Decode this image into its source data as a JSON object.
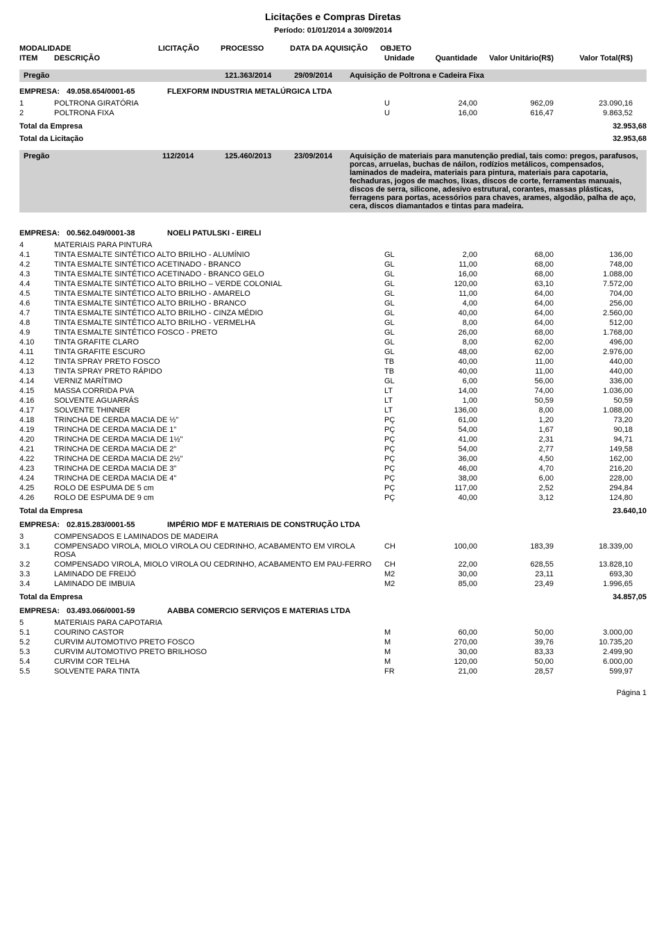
{
  "title": "Licitações e Compras Diretas",
  "period": "Período: 01/01/2014  a 30/09/2014",
  "header": {
    "modalidade": "MODALIDADE",
    "licitacao": "LICITAÇÃO",
    "processo": "PROCESSO",
    "data_aq": "DATA DA AQUISIÇÃO",
    "objeto": "OBJETO",
    "item": "ITEM",
    "descricao": "DESCRIÇÃO",
    "unidade": "Unidade",
    "quantidade": "Quantidade",
    "valor_unit": "Valor Unitário(R$)",
    "valor_total": "Valor Total(R$)"
  },
  "labels": {
    "empresa": "EMPRESA:",
    "total_empresa": "Total da Empresa",
    "total_licitacao": "Total da Licitação",
    "pagina": "Página 1"
  },
  "section1": {
    "modalidade": "Pregão",
    "licitacao": "",
    "processo": "121.363/2014",
    "data": "29/09/2014",
    "objeto": "Aquisição de Poltrona e Cadeira Fixa"
  },
  "empresa1": {
    "cnpj": "49.058.654/0001-65",
    "nome": "FLEXFORM INDUSTRIA METALÚRGICA LTDA",
    "items": [
      {
        "item": "1",
        "desc": "POLTRONA GIRATÓRIA",
        "un": "U",
        "qtd": "24,00",
        "vu": "962,09",
        "vt": "23.090,16"
      },
      {
        "item": "2",
        "desc": "POLTRONA FIXA",
        "un": "U",
        "qtd": "16,00",
        "vu": "616,47",
        "vt": "9.863,52"
      }
    ],
    "total": "32.953,68"
  },
  "total_lic1": "32.953,68",
  "section2": {
    "modalidade": "Pregão",
    "licitacao": "112/2014",
    "processo": "125.460/2013",
    "data": "23/09/2014",
    "objeto": "Aquisição de materiais para manutenção predial, tais como: pregos, parafusos, porcas, arruelas, buchas de náilon, rodízios metálicos, compensados, laminados de madeira, materiais para pintura, materiais para capotaria, fechaduras, jogos de machos, lixas, discos de corte, ferramentas manuais, discos de serra, silicone, adesivo estrutural, corantes, massas plásticas, ferragens para portas, acessórios para chaves, arames, algodão, palha de aço, cera, discos diamantados e tintas para madeira."
  },
  "empresa2": {
    "cnpj": "00.562.049/0001-38",
    "nome": "NOELI PATULSKI - EIRELI",
    "group_item": "4",
    "group_desc": "MATERIAIS PARA PINTURA",
    "items": [
      {
        "item": "4.1",
        "desc": "TINTA ESMALTE SINTÉTICO ALTO BRILHO - ALUMÍNIO",
        "un": "GL",
        "qtd": "2,00",
        "vu": "68,00",
        "vt": "136,00"
      },
      {
        "item": "4.2",
        "desc": "TINTA ESMALTE SINTÉTICO ACETINADO - BRANCO",
        "un": "GL",
        "qtd": "11,00",
        "vu": "68,00",
        "vt": "748,00"
      },
      {
        "item": "4.3",
        "desc": "TINTA ESMALTE SINTÉTICO ACETINADO - BRANCO GELO",
        "un": "GL",
        "qtd": "16,00",
        "vu": "68,00",
        "vt": "1.088,00"
      },
      {
        "item": "4.4",
        "desc": "TINTA ESMALTE SINTÉTICO ALTO BRILHO – VERDE COLONIAL",
        "un": "GL",
        "qtd": "120,00",
        "vu": "63,10",
        "vt": "7.572,00"
      },
      {
        "item": "4.5",
        "desc": "TINTA ESMALTE SINTÉTICO ALTO BRILHO - AMARELO",
        "un": "GL",
        "qtd": "11,00",
        "vu": "64,00",
        "vt": "704,00"
      },
      {
        "item": "4.6",
        "desc": "TINTA ESMALTE SINTÉTICO ALTO BRILHO - BRANCO",
        "un": "GL",
        "qtd": "4,00",
        "vu": "64,00",
        "vt": "256,00"
      },
      {
        "item": "4.7",
        "desc": "TINTA ESMALTE SINTÉTICO ALTO BRILHO - CINZA MÉDIO",
        "un": "GL",
        "qtd": "40,00",
        "vu": "64,00",
        "vt": "2.560,00"
      },
      {
        "item": "4.8",
        "desc": "TINTA ESMALTE SINTÉTICO ALTO BRILHO - VERMELHA",
        "un": "GL",
        "qtd": "8,00",
        "vu": "64,00",
        "vt": "512,00"
      },
      {
        "item": "4.9",
        "desc": "TINTA ESMALTE SINTÉTICO FOSCO - PRETO",
        "un": "GL",
        "qtd": "26,00",
        "vu": "68,00",
        "vt": "1.768,00"
      },
      {
        "item": "4.10",
        "desc": "TINTA GRAFITE CLARO",
        "un": "GL",
        "qtd": "8,00",
        "vu": "62,00",
        "vt": "496,00"
      },
      {
        "item": "4.11",
        "desc": "TINTA GRAFITE ESCURO",
        "un": "GL",
        "qtd": "48,00",
        "vu": "62,00",
        "vt": "2.976,00"
      },
      {
        "item": "4.12",
        "desc": "TINTA SPRAY PRETO FOSCO",
        "un": "TB",
        "qtd": "40,00",
        "vu": "11,00",
        "vt": "440,00"
      },
      {
        "item": "4.13",
        "desc": "TINTA SPRAY PRETO RÁPIDO",
        "un": "TB",
        "qtd": "40,00",
        "vu": "11,00",
        "vt": "440,00"
      },
      {
        "item": "4.14",
        "desc": "VERNIZ MARÍTIMO",
        "un": "GL",
        "qtd": "6,00",
        "vu": "56,00",
        "vt": "336,00"
      },
      {
        "item": "4.15",
        "desc": "MASSA CORRIDA PVA",
        "un": "LT",
        "qtd": "14,00",
        "vu": "74,00",
        "vt": "1.036,00"
      },
      {
        "item": "4.16",
        "desc": "SOLVENTE AGUARRÁS",
        "un": "LT",
        "qtd": "1,00",
        "vu": "50,59",
        "vt": "50,59"
      },
      {
        "item": "4.17",
        "desc": "SOLVENTE THINNER",
        "un": "LT",
        "qtd": "136,00",
        "vu": "8,00",
        "vt": "1.088,00"
      },
      {
        "item": "4.18",
        "desc": "TRINCHA DE CERDA MACIA DE ½\"",
        "un": "PÇ",
        "qtd": "61,00",
        "vu": "1,20",
        "vt": "73,20"
      },
      {
        "item": "4.19",
        "desc": "TRINCHA DE CERDA MACIA DE 1\"",
        "un": "PÇ",
        "qtd": "54,00",
        "vu": "1,67",
        "vt": "90,18"
      },
      {
        "item": "4.20",
        "desc": "TRINCHA DE CERDA MACIA DE 1½\"",
        "un": "PÇ",
        "qtd": "41,00",
        "vu": "2,31",
        "vt": "94,71"
      },
      {
        "item": "4.21",
        "desc": "TRINCHA DE CERDA MACIA DE 2\"",
        "un": "PÇ",
        "qtd": "54,00",
        "vu": "2,77",
        "vt": "149,58"
      },
      {
        "item": "4.22",
        "desc": "TRINCHA DE CERDA MACIA DE 2½\"",
        "un": "PÇ",
        "qtd": "36,00",
        "vu": "4,50",
        "vt": "162,00"
      },
      {
        "item": "4.23",
        "desc": "TRINCHA DE CERDA MACIA DE 3\"",
        "un": "PÇ",
        "qtd": "46,00",
        "vu": "4,70",
        "vt": "216,20"
      },
      {
        "item": "4.24",
        "desc": "TRINCHA DE CERDA MACIA DE 4\"",
        "un": "PÇ",
        "qtd": "38,00",
        "vu": "6,00",
        "vt": "228,00"
      },
      {
        "item": "4.25",
        "desc": "ROLO DE ESPUMA DE 5 cm",
        "un": "PÇ",
        "qtd": "117,00",
        "vu": "2,52",
        "vt": "294,84"
      },
      {
        "item": "4.26",
        "desc": "ROLO DE ESPUMA DE 9 cm",
        "un": "PÇ",
        "qtd": "40,00",
        "vu": "3,12",
        "vt": "124,80"
      }
    ],
    "total": "23.640,10"
  },
  "empresa3": {
    "cnpj": "02.815.283/0001-55",
    "nome": "IMPÉRIO MDF E MATERIAIS DE CONSTRUÇÃO LTDA",
    "group_item": "3",
    "group_desc": "COMPENSADOS E LAMINADOS DE MADEIRA",
    "items": [
      {
        "item": "3.1",
        "desc": "COMPENSADO VIROLA, MIOLO VIROLA OU CEDRINHO, ACABAMENTO EM VIROLA ROSA",
        "un": "CH",
        "qtd": "100,00",
        "vu": "183,39",
        "vt": "18.339,00"
      },
      {
        "item": "3.2",
        "desc": "COMPENSADO VIROLA, MIOLO VIROLA OU CEDRINHO, ACABAMENTO EM PAU-FERRO",
        "un": "CH",
        "qtd": "22,00",
        "vu": "628,55",
        "vt": "13.828,10"
      },
      {
        "item": "3.3",
        "desc": "LAMINADO DE FREIJÓ",
        "un": "M2",
        "qtd": "30,00",
        "vu": "23,11",
        "vt": "693,30"
      },
      {
        "item": "3.4",
        "desc": "LAMINADO DE IMBUIA",
        "un": "M2",
        "qtd": "85,00",
        "vu": "23,49",
        "vt": "1.996,65"
      }
    ],
    "total": "34.857,05"
  },
  "empresa4": {
    "cnpj": "03.493.066/0001-59",
    "nome": "AABBA COMERCIO SERVIÇOS E MATERIAS LTDA",
    "group_item": "5",
    "group_desc": "MATERIAIS PARA CAPOTARIA",
    "items": [
      {
        "item": "5.1",
        "desc": "COURINO CASTOR",
        "un": "M",
        "qtd": "60,00",
        "vu": "50,00",
        "vt": "3.000,00"
      },
      {
        "item": "5.2",
        "desc": "CURVIM AUTOMOTIVO PRETO FOSCO",
        "un": "M",
        "qtd": "270,00",
        "vu": "39,76",
        "vt": "10.735,20"
      },
      {
        "item": "5.3",
        "desc": "CURVIM AUTOMOTIVO PRETO BRILHOSO",
        "un": "M",
        "qtd": "30,00",
        "vu": "83,33",
        "vt": "2.499,90"
      },
      {
        "item": "5.4",
        "desc": "CURVIM COR TELHA",
        "un": "M",
        "qtd": "120,00",
        "vu": "50,00",
        "vt": "6.000,00"
      },
      {
        "item": "5.5",
        "desc": "SOLVENTE PARA TINTA",
        "un": "FR",
        "qtd": "21,00",
        "vu": "28,57",
        "vt": "599,97"
      }
    ]
  }
}
